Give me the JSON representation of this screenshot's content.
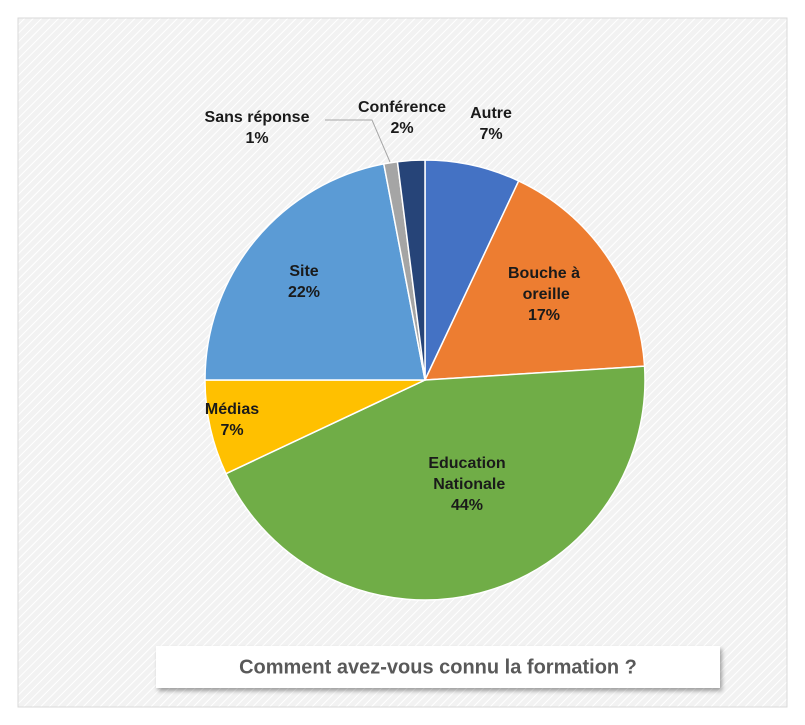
{
  "chart_data": {
    "type": "pie",
    "title": "Comment avez-vous connu la formation ?",
    "categories": [
      "Autre",
      "Bouche à oreille",
      "Education Nationale",
      "Médias",
      "Site",
      "Sans réponse",
      "Conférence"
    ],
    "values": [
      7,
      17,
      44,
      7,
      22,
      1,
      2
    ],
    "value_labels": [
      "7%",
      "17%",
      "44%",
      "7%",
      "22%",
      "1%",
      "2%"
    ],
    "colors": [
      "#4472c4",
      "#ed7d31",
      "#70ad47",
      "#ffc000",
      "#5b9bd5",
      "#a5a5a5",
      "#264478"
    ]
  }
}
